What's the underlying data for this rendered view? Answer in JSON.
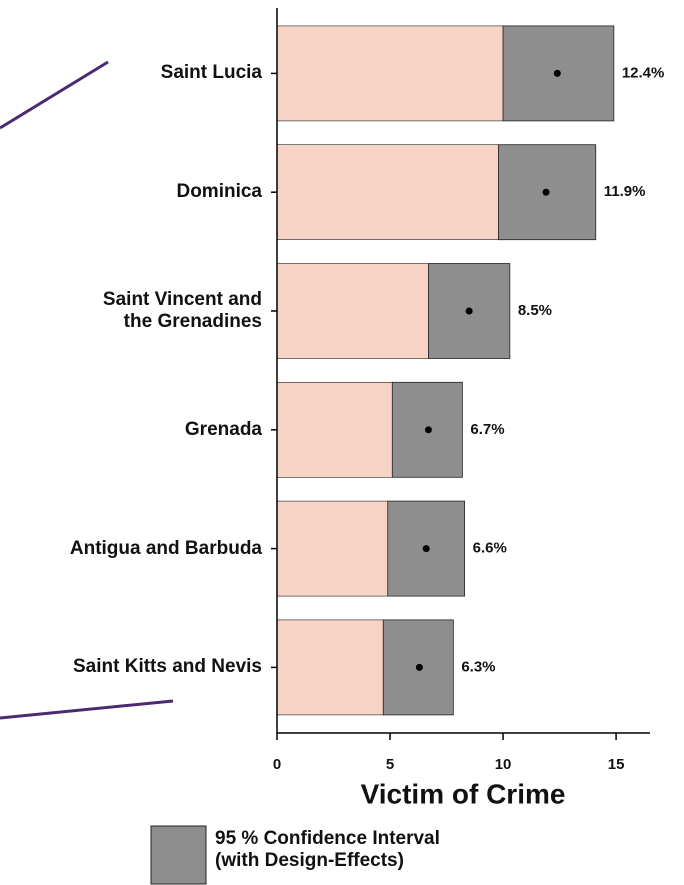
{
  "chart_data": {
    "type": "interval_bar",
    "categories": [
      "Saint Lucia",
      "Dominica",
      "Saint Vincent and\nthe Grenadines",
      "Grenada",
      "Antigua and Barbuda",
      "Saint Kitts and Nevis"
    ],
    "values": [
      12.4,
      11.9,
      8.5,
      6.7,
      6.6,
      6.3
    ],
    "value_labels": [
      "12.4%",
      "11.9%",
      "8.5%",
      "6.7%",
      "6.6%",
      "6.3%"
    ],
    "ci_lower": [
      10.0,
      9.8,
      6.7,
      5.1,
      4.9,
      4.7
    ],
    "ci_upper": [
      14.9,
      14.1,
      10.3,
      8.2,
      8.3,
      7.8
    ],
    "bar_color": "#f6d3c5",
    "ci_color": "#8e8e8e",
    "xlim": [
      0,
      16.5
    ],
    "xticks": [
      0,
      5,
      10,
      15
    ],
    "xlabel": "Victim of Crime",
    "legend_label": "95 % Confidence Interval\n(with Design-Effects)"
  }
}
